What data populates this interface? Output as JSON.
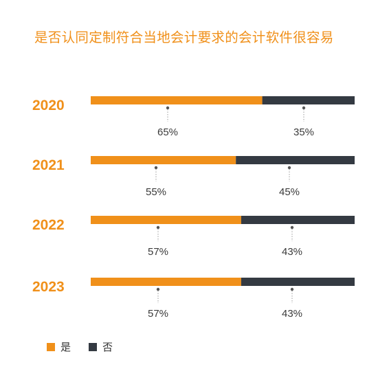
{
  "chart_data": {
    "type": "bar",
    "orientation": "horizontal",
    "stacked": true,
    "title": "是否认同定制符合当地会计要求的会计软件很容易",
    "categories": [
      "2020",
      "2021",
      "2022",
      "2023"
    ],
    "series": [
      {
        "name": "是",
        "values": [
          65,
          55,
          57,
          57
        ],
        "labels": [
          "65%",
          "55%",
          "57%",
          "57%"
        ],
        "color": "#F0901A"
      },
      {
        "name": "否",
        "values": [
          35,
          45,
          43,
          43
        ],
        "labels": [
          "35%",
          "45%",
          "43%",
          "43%"
        ],
        "color": "#343A42"
      }
    ],
    "xlim": [
      0,
      100
    ],
    "unit": "%",
    "grid": false,
    "legend_position": "bottom-left",
    "colors": {
      "title": "#F0901A",
      "year_label": "#F0901A",
      "yes": "#F0901A",
      "no": "#343A42",
      "leader": "#555555",
      "label_text": "#3a3a3a"
    }
  }
}
